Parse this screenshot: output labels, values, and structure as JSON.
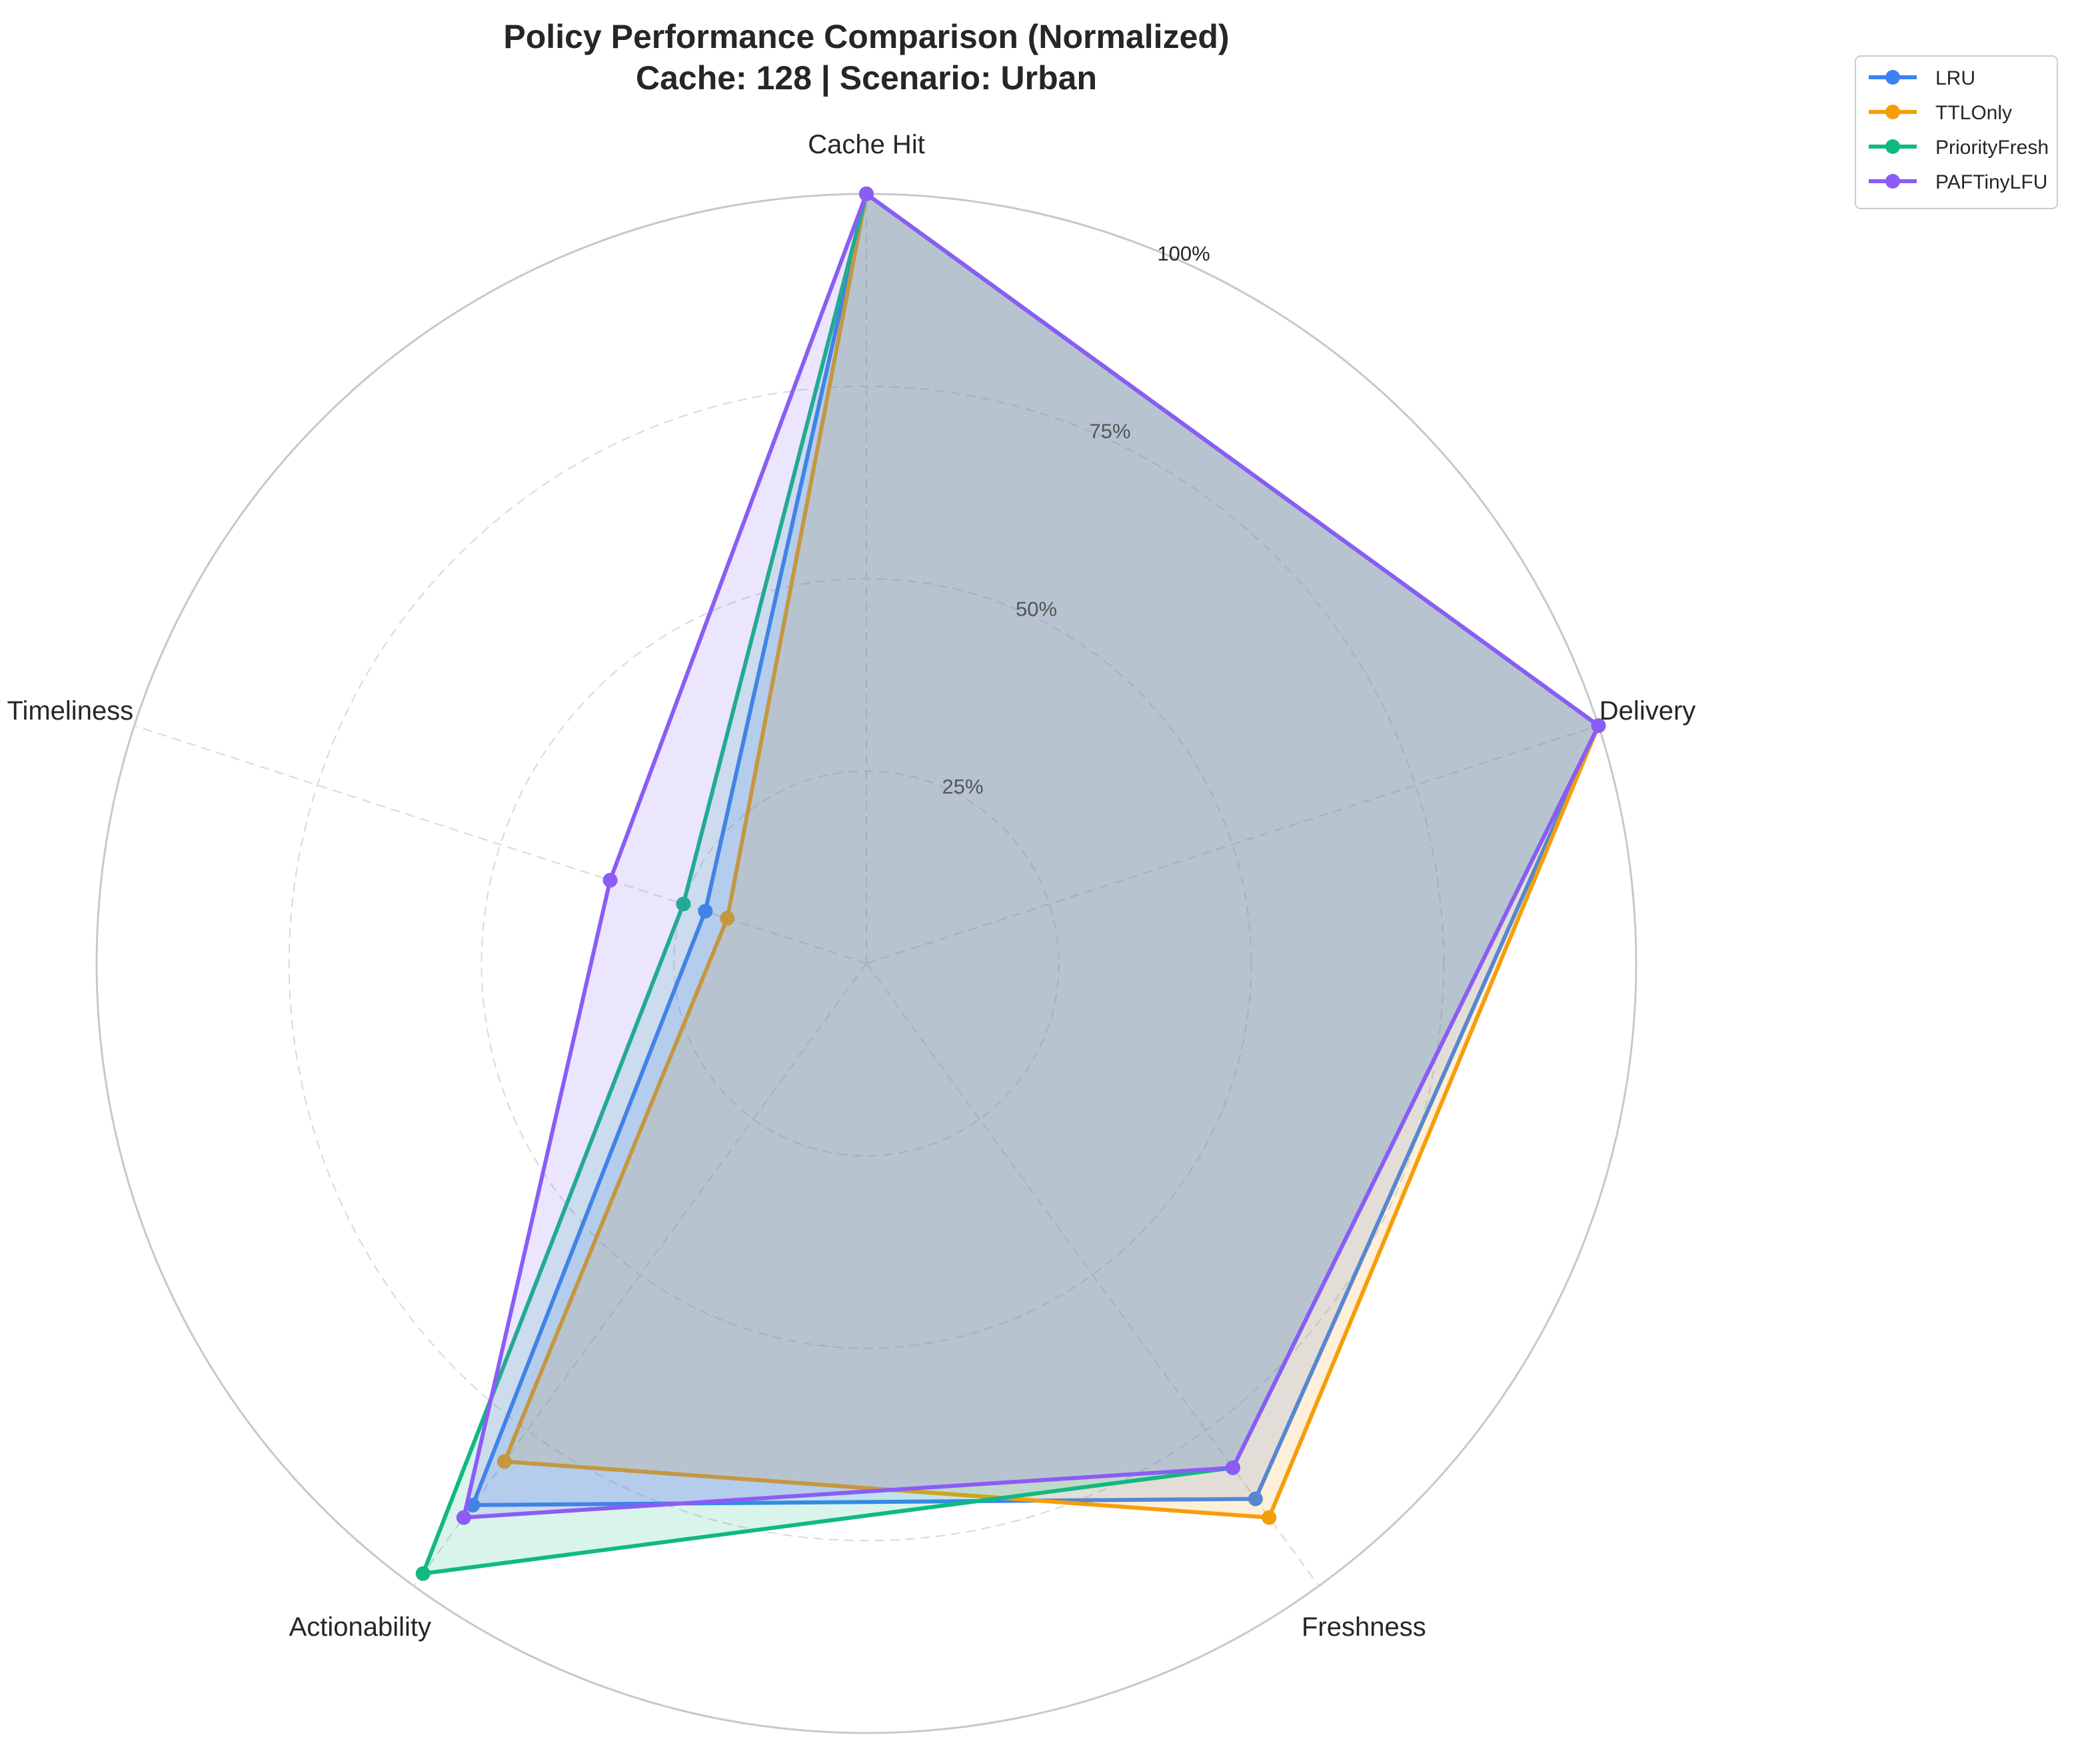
{
  "chart_data": {
    "type": "radar",
    "title": "Policy Performance Comparison (Normalized)",
    "subtitle": "Cache: 128 | Scenario: Urban",
    "categories": [
      "Cache Hit",
      "Delivery",
      "Freshness",
      "Actionability",
      "Timeliness"
    ],
    "radial_ticks": [
      25,
      50,
      75,
      100
    ],
    "radial_tick_labels": [
      "25%",
      "50%",
      "75%",
      "100%"
    ],
    "ylim": [
      0,
      100
    ],
    "grid": true,
    "legend_placement": "upper-right, outside plot",
    "series": [
      {
        "name": "LRU",
        "color": "#3b82f6",
        "values": [
          100,
          100,
          86,
          87,
          22
        ]
      },
      {
        "name": "TTLOnly",
        "color": "#f59e0b",
        "values": [
          100,
          100,
          89,
          80,
          19
        ]
      },
      {
        "name": "PriorityFresh",
        "color": "#10b981",
        "values": [
          100,
          100,
          81,
          98,
          25
        ]
      },
      {
        "name": "PAFTinyLFU",
        "color": "#8b5cf6",
        "values": [
          100,
          100,
          81,
          89,
          35
        ]
      }
    ]
  }
}
